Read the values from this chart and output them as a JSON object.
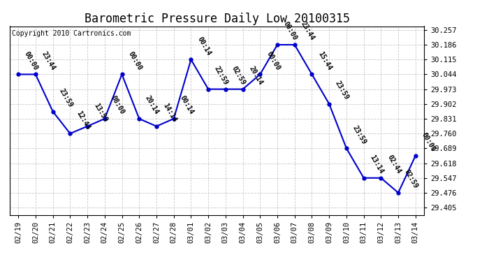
{
  "title": "Barometric Pressure Daily Low 20100315",
  "copyright": "Copyright 2010 Cartronics.com",
  "dates": [
    "02/19",
    "02/20",
    "02/21",
    "02/22",
    "02/23",
    "02/24",
    "02/25",
    "02/26",
    "02/27",
    "02/28",
    "03/01",
    "03/02",
    "03/03",
    "03/04",
    "03/05",
    "03/06",
    "03/07",
    "03/08",
    "03/09",
    "03/10",
    "03/11",
    "03/12",
    "03/13",
    "03/14"
  ],
  "values": [
    30.044,
    30.044,
    29.866,
    29.76,
    29.795,
    29.831,
    30.044,
    29.831,
    29.795,
    29.831,
    30.115,
    29.973,
    29.973,
    29.973,
    30.044,
    30.186,
    30.186,
    30.044,
    29.902,
    29.689,
    29.547,
    29.547,
    29.476,
    29.654
  ],
  "time_labels": [
    "00:00",
    "23:44",
    "23:59",
    "12:44",
    "13:59",
    "08:00",
    "00:00",
    "20:14",
    "14:14",
    "00:14",
    "00:14",
    "22:59",
    "02:59",
    "20:14",
    "00:00",
    "00:00",
    "23:44",
    "15:44",
    "23:59",
    "23:59",
    "13:14",
    "02:44",
    "02:59",
    "00:00"
  ],
  "yticks": [
    29.405,
    29.476,
    29.547,
    29.618,
    29.689,
    29.76,
    29.831,
    29.902,
    29.973,
    30.044,
    30.115,
    30.186,
    30.257
  ],
  "ylim": [
    29.37,
    30.275
  ],
  "xlim": [
    -0.5,
    23.5
  ],
  "line_color": "#0000cc",
  "marker_color": "#0000cc",
  "bg_color": "#ffffff",
  "grid_color": "#c8c8c8",
  "title_fontsize": 12,
  "tick_fontsize": 7.5,
  "annot_fontsize": 7,
  "copyright_fontsize": 7
}
